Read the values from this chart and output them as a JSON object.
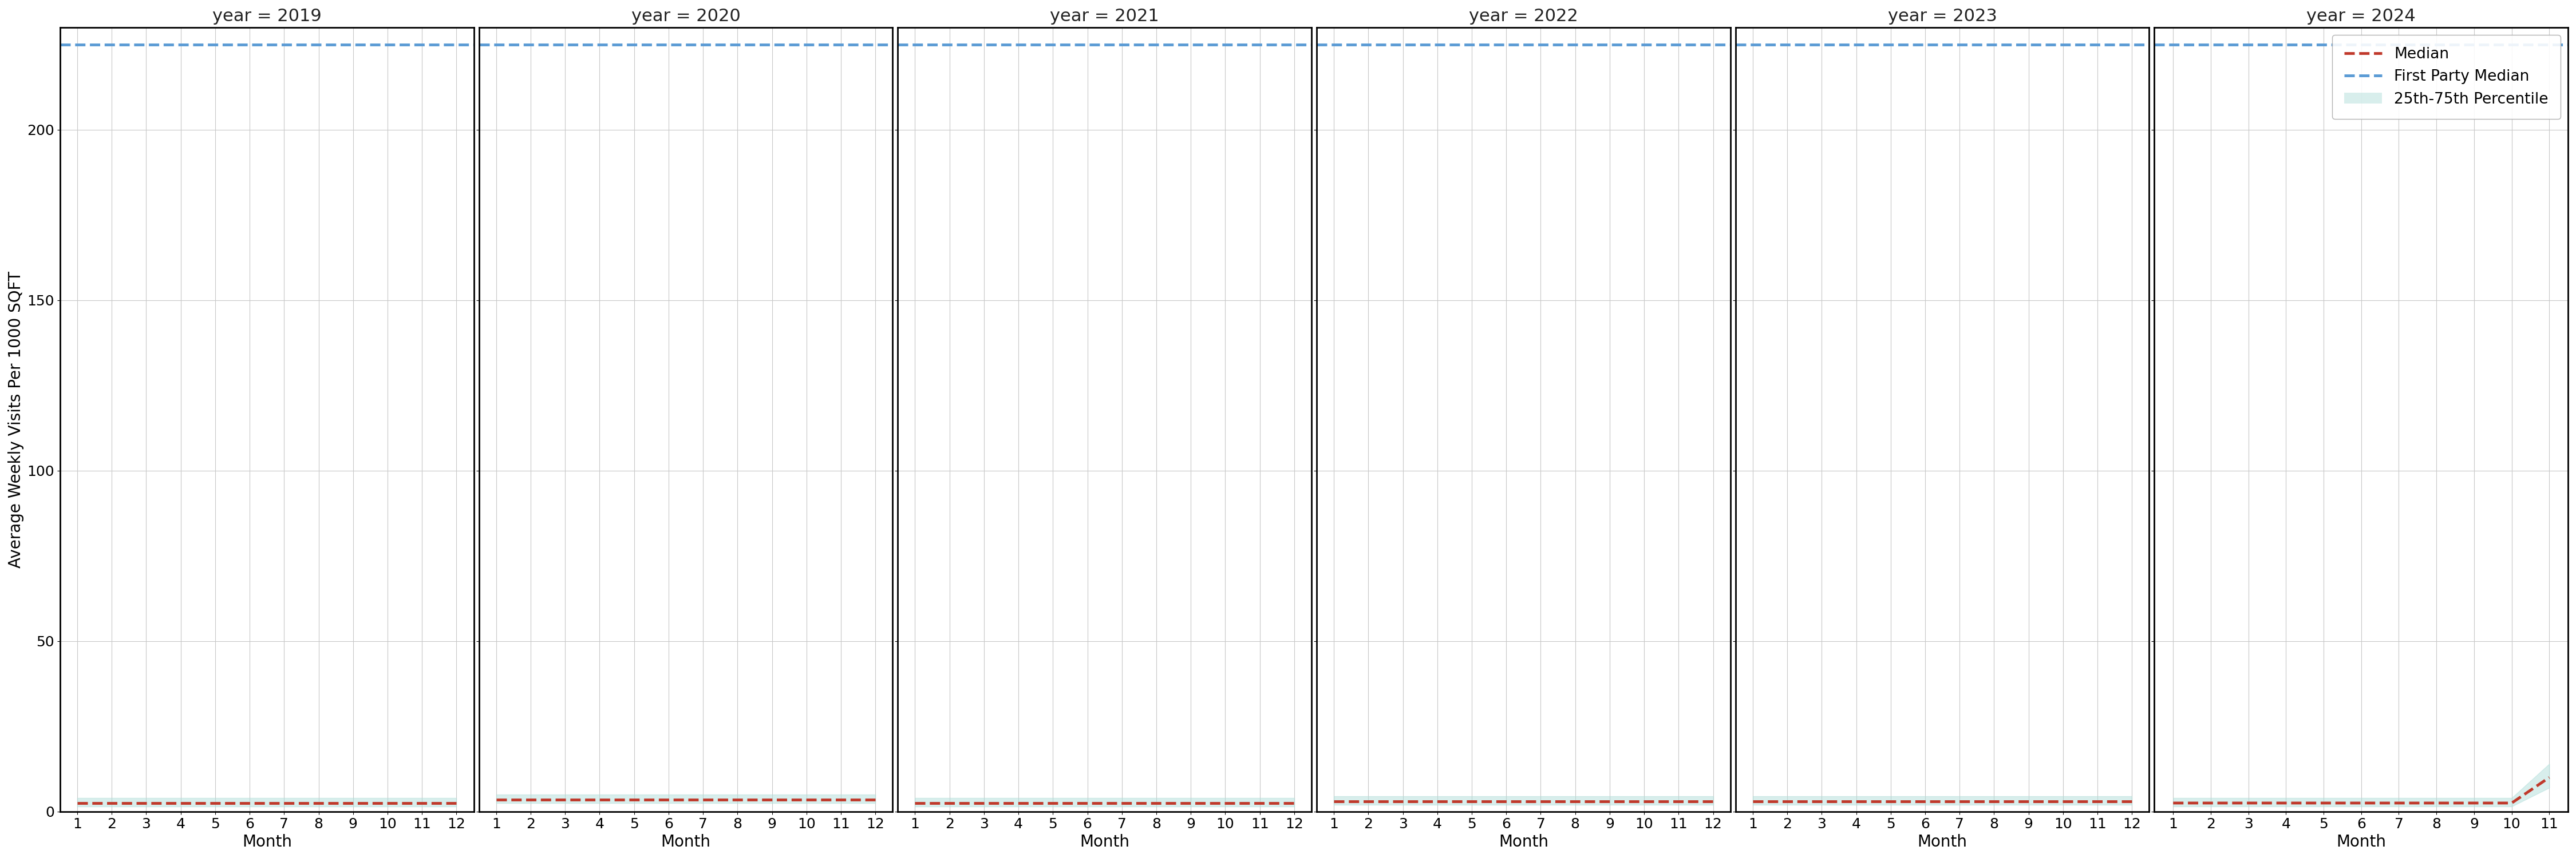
{
  "years": [
    2019,
    2020,
    2021,
    2022,
    2023,
    2024
  ],
  "months_full": [
    1,
    2,
    3,
    4,
    5,
    6,
    7,
    8,
    9,
    10,
    11,
    12
  ],
  "months_2024": [
    1,
    2,
    3,
    4,
    5,
    6,
    7,
    8,
    9,
    10,
    11
  ],
  "first_party_median": 225,
  "median_values": {
    "2019": [
      2.5,
      2.5,
      2.5,
      2.5,
      2.5,
      2.5,
      2.5,
      2.5,
      2.5,
      2.5,
      2.5,
      2.5
    ],
    "2020": [
      3.5,
      3.5,
      3.5,
      3.5,
      3.5,
      3.5,
      3.5,
      3.5,
      3.5,
      3.5,
      3.5,
      3.5
    ],
    "2021": [
      2.5,
      2.5,
      2.5,
      2.5,
      2.5,
      2.5,
      2.5,
      2.5,
      2.5,
      2.5,
      2.5,
      2.5
    ],
    "2022": [
      3.0,
      3.0,
      3.0,
      3.0,
      3.0,
      3.0,
      3.0,
      3.0,
      3.0,
      3.0,
      3.0,
      3.0
    ],
    "2023": [
      3.0,
      3.0,
      3.0,
      3.0,
      3.0,
      3.0,
      3.0,
      3.0,
      3.0,
      3.0,
      3.0,
      3.0
    ],
    "2024": [
      2.5,
      2.5,
      2.5,
      2.5,
      2.5,
      2.5,
      2.5,
      2.5,
      2.5,
      2.5,
      10.0
    ]
  },
  "p25_values": {
    "2019": [
      1.5,
      1.5,
      1.5,
      1.5,
      1.5,
      1.5,
      1.5,
      1.5,
      1.5,
      1.5,
      1.5,
      1.5
    ],
    "2020": [
      2.5,
      2.5,
      2.5,
      2.5,
      2.5,
      2.5,
      2.5,
      2.5,
      2.5,
      2.5,
      2.5,
      2.5
    ],
    "2021": [
      1.5,
      1.5,
      1.5,
      1.5,
      1.5,
      1.5,
      1.5,
      1.5,
      1.5,
      1.5,
      1.5,
      1.5
    ],
    "2022": [
      2.0,
      2.0,
      2.0,
      2.0,
      2.0,
      2.0,
      2.0,
      2.0,
      2.0,
      2.0,
      2.0,
      2.0
    ],
    "2023": [
      2.0,
      2.0,
      2.0,
      2.0,
      2.0,
      2.0,
      2.0,
      2.0,
      2.0,
      2.0,
      2.0,
      2.0
    ],
    "2024": [
      1.5,
      1.5,
      1.5,
      1.5,
      1.5,
      1.5,
      1.5,
      1.5,
      1.5,
      1.5,
      7.0
    ]
  },
  "p75_values": {
    "2019": [
      4.0,
      4.0,
      4.0,
      4.0,
      4.0,
      4.0,
      4.0,
      4.0,
      4.0,
      4.0,
      4.0,
      4.0
    ],
    "2020": [
      5.0,
      5.0,
      5.0,
      5.0,
      5.0,
      5.0,
      5.0,
      5.0,
      5.0,
      5.0,
      5.0,
      5.0
    ],
    "2021": [
      4.0,
      4.0,
      4.0,
      4.0,
      4.0,
      4.0,
      4.0,
      4.0,
      4.0,
      4.0,
      4.0,
      4.0
    ],
    "2022": [
      4.5,
      4.5,
      4.5,
      4.5,
      4.5,
      4.5,
      4.5,
      4.5,
      4.5,
      4.5,
      4.5,
      4.5
    ],
    "2023": [
      4.5,
      4.5,
      4.5,
      4.5,
      4.5,
      4.5,
      4.5,
      4.5,
      4.5,
      4.5,
      4.5,
      4.5
    ],
    "2024": [
      4.0,
      4.0,
      4.0,
      4.0,
      4.0,
      4.0,
      4.0,
      4.0,
      4.0,
      4.0,
      14.0
    ]
  },
  "ylim": [
    0,
    230
  ],
  "yticks": [
    0,
    50,
    100,
    150,
    200
  ],
  "ylabel": "Average Weekly Visits Per 1000 SQFT",
  "xlabel": "Month",
  "median_color": "#c0392b",
  "first_party_color": "#5b9bd5",
  "fill_color": "#b2dfdb",
  "fill_alpha": 0.5,
  "background_color": "#ffffff",
  "grid_color": "#c8c8c8",
  "title_fontsize": 22,
  "label_fontsize": 20,
  "tick_fontsize": 18,
  "legend_fontsize": 19,
  "line_width": 3.5
}
